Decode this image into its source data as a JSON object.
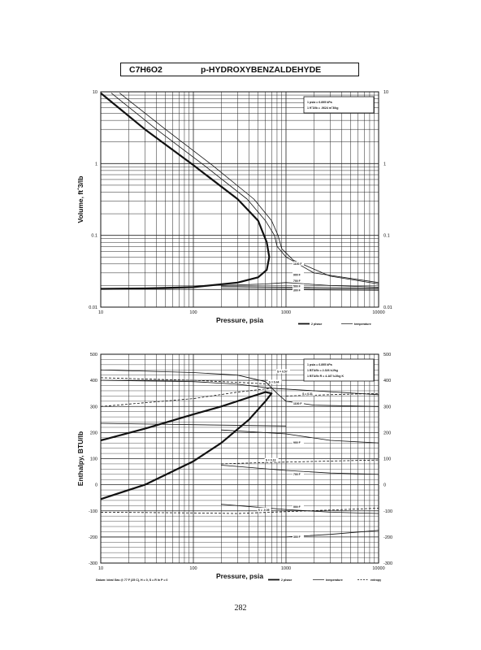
{
  "header": {
    "formula": "C7H6O2",
    "name": "p-HYDROXYBENZALDEHYDE"
  },
  "page_number": "282",
  "chart_data": [
    {
      "type": "line",
      "id": "volume",
      "ylabel": "Volume, ft^3/lb",
      "xlabel": "Pressure, psia",
      "xscale": "log",
      "yscale": "log",
      "xlim": [
        10,
        10000
      ],
      "ylim": [
        0.01,
        10
      ],
      "xticks": [
        "10",
        "100",
        "1000",
        "10000"
      ],
      "yticks_left": [
        "10",
        "1",
        "0.1",
        "0.01"
      ],
      "yticks_right": [
        "10",
        "1",
        "0.1",
        "0.01"
      ],
      "grid": true,
      "legend_box": [
        "1 psia = 6.895 kPa",
        "1 ft^3/lb = .0624 m^3/kg"
      ],
      "bottom_legend": [
        "2 phase",
        "temperature"
      ],
      "isotherm_labels": [
        "1100 F",
        "900 F",
        "700 F",
        "500 F",
        "300 F"
      ],
      "series": [
        {
          "name": "2 phase",
          "style": "bold",
          "points": [
            [
              10,
              9.6
            ],
            [
              30,
              3.0
            ],
            [
              100,
              0.95
            ],
            [
              300,
              0.32
            ],
            [
              500,
              0.16
            ],
            [
              620,
              0.08
            ],
            [
              660,
              0.05
            ],
            [
              620,
              0.033
            ],
            [
              500,
              0.026
            ],
            [
              300,
              0.022
            ],
            [
              100,
              0.019
            ],
            [
              30,
              0.0182
            ],
            [
              10,
              0.018
            ]
          ]
        },
        {
          "name": "",
          "style": "thin",
          "points": [
            [
              13,
              9.6
            ],
            [
              40,
              3.0
            ],
            [
              130,
              0.95
            ],
            [
              380,
              0.32
            ],
            [
              600,
              0.16
            ],
            [
              750,
              0.1
            ],
            [
              800,
              0.07
            ],
            [
              1000,
              0.05
            ],
            [
              2000,
              0.03
            ],
            [
              10000,
              0.022
            ]
          ]
        },
        {
          "name": "",
          "style": "thin",
          "points": [
            [
              16,
              9.6
            ],
            [
              50,
              3.0
            ],
            [
              160,
              0.95
            ],
            [
              450,
              0.32
            ],
            [
              700,
              0.16
            ],
            [
              820,
              0.1
            ],
            [
              900,
              0.065
            ],
            [
              1200,
              0.045
            ],
            [
              3000,
              0.027
            ],
            [
              10000,
              0.021
            ]
          ]
        },
        {
          "name": "",
          "style": "thin",
          "points": [
            [
              200,
              0.02
            ],
            [
              600,
              0.021
            ],
            [
              1000,
              0.022
            ],
            [
              3000,
              0.02
            ],
            [
              10000,
              0.019
            ]
          ]
        },
        {
          "name": "",
          "style": "thin",
          "points": [
            [
              200,
              0.0195
            ],
            [
              1000,
              0.019
            ],
            [
              10000,
              0.0185
            ]
          ]
        },
        {
          "name": "",
          "style": "thin",
          "points": [
            [
              200,
              0.0185
            ],
            [
              1000,
              0.0182
            ],
            [
              10000,
              0.0178
            ]
          ]
        },
        {
          "name": "",
          "style": "thin",
          "points": [
            [
              10,
              0.0178
            ],
            [
              1000,
              0.0175
            ],
            [
              10000,
              0.0172
            ]
          ]
        }
      ]
    },
    {
      "type": "line",
      "id": "enthalpy",
      "ylabel": "Enthalpy, BTU/lb",
      "xlabel": "Pressure, psia",
      "xscale": "log",
      "yscale": "linear",
      "xlim": [
        10,
        10000
      ],
      "ylim": [
        -300,
        500
      ],
      "xticks": [
        "10",
        "100",
        "1000",
        "10000"
      ],
      "yticks_left": [
        "500",
        "400",
        "300",
        "200",
        "100",
        "0",
        "-100",
        "-200",
        "-300"
      ],
      "yticks_right": [
        "500",
        "400",
        "300",
        "200",
        "100",
        "0",
        "-100",
        "-200",
        "-300"
      ],
      "grid": true,
      "legend_box": [
        "1 psia = 6.895 kPa",
        "1 BTU/lb = 2.326 kJ/kg",
        "1 BTU/lb R = 4.187 kJ/kg K"
      ],
      "footnote": "Datum: Ideal Gas @ 77 F (25 C), H = 0, S = R ln P = 0",
      "bottom_legend": [
        "2 phase",
        "temperature",
        "entropy"
      ],
      "isotherm_labels": [
        "1100 F",
        "900 F",
        "700 F",
        "500 F",
        "300 F"
      ],
      "entropy_labels": [
        "S = 0.57",
        "S = 0.44",
        "S = 0.31",
        "S = 0.13",
        "S = -0.05"
      ],
      "series": [
        {
          "name": "2 phase",
          "style": "bold",
          "points": [
            [
              10,
              -55
            ],
            [
              30,
              0
            ],
            [
              100,
              90
            ],
            [
              200,
              160
            ],
            [
              400,
              250
            ],
            [
              600,
              320
            ],
            [
              700,
              350
            ],
            [
              600,
              355
            ],
            [
              400,
              335
            ],
            [
              200,
              300
            ],
            [
              100,
              270
            ],
            [
              30,
              215
            ],
            [
              10,
              170
            ]
          ]
        },
        {
          "name": "",
          "style": "thin",
          "points": [
            [
              10,
              440
            ],
            [
              100,
              430
            ],
            [
              300,
              420
            ],
            [
              600,
              395
            ],
            [
              800,
              350
            ],
            [
              1000,
              320
            ],
            [
              2000,
              305
            ],
            [
              10000,
              300
            ]
          ]
        },
        {
          "name": "",
          "style": "thin",
          "points": [
            [
              10,
              400
            ],
            [
              100,
              395
            ],
            [
              300,
              385
            ],
            [
              700,
              370
            ],
            [
              10000,
              345
            ]
          ]
        },
        {
          "name": "",
          "style": "thin",
          "points": [
            [
              200,
              210
            ],
            [
              1000,
              195
            ],
            [
              3000,
              170
            ],
            [
              10000,
              160
            ]
          ]
        },
        {
          "name": "",
          "style": "thin",
          "points": [
            [
              200,
              75
            ],
            [
              1000,
              55
            ],
            [
              3000,
              45
            ],
            [
              10000,
              40
            ]
          ]
        },
        {
          "name": "",
          "style": "thin",
          "points": [
            [
              200,
              -75
            ],
            [
              1000,
              -95
            ],
            [
              3000,
              -105
            ],
            [
              10000,
              -110
            ]
          ]
        },
        {
          "name": "",
          "style": "thin",
          "points": [
            [
              10,
              -200
            ],
            [
              1000,
              -200
            ],
            [
              3000,
              -190
            ],
            [
              10000,
              -175
            ]
          ]
        },
        {
          "name": "",
          "style": "thin",
          "points": [
            [
              10,
              235
            ],
            [
              100,
              230
            ],
            [
              1000,
              225
            ]
          ]
        },
        {
          "name": "",
          "style": "dashed",
          "points": [
            [
              10,
              410
            ],
            [
              100,
              400
            ],
            [
              400,
              390
            ],
            [
              700,
              385
            ]
          ]
        },
        {
          "name": "",
          "style": "dashed",
          "points": [
            [
              10,
              300
            ],
            [
              100,
              330
            ],
            [
              300,
              355
            ],
            [
              700,
              370
            ]
          ]
        },
        {
          "name": "",
          "style": "dashed",
          "points": [
            [
              1000,
              340
            ],
            [
              3000,
              345
            ],
            [
              10000,
              350
            ]
          ]
        },
        {
          "name": "",
          "style": "dashed",
          "points": [
            [
              200,
              80
            ],
            [
              600,
              85
            ],
            [
              10000,
              95
            ]
          ]
        },
        {
          "name": "",
          "style": "dashed",
          "points": [
            [
              10,
              -105
            ],
            [
              100,
              -108
            ],
            [
              300,
              -110
            ],
            [
              10000,
              -90
            ]
          ]
        }
      ]
    }
  ]
}
